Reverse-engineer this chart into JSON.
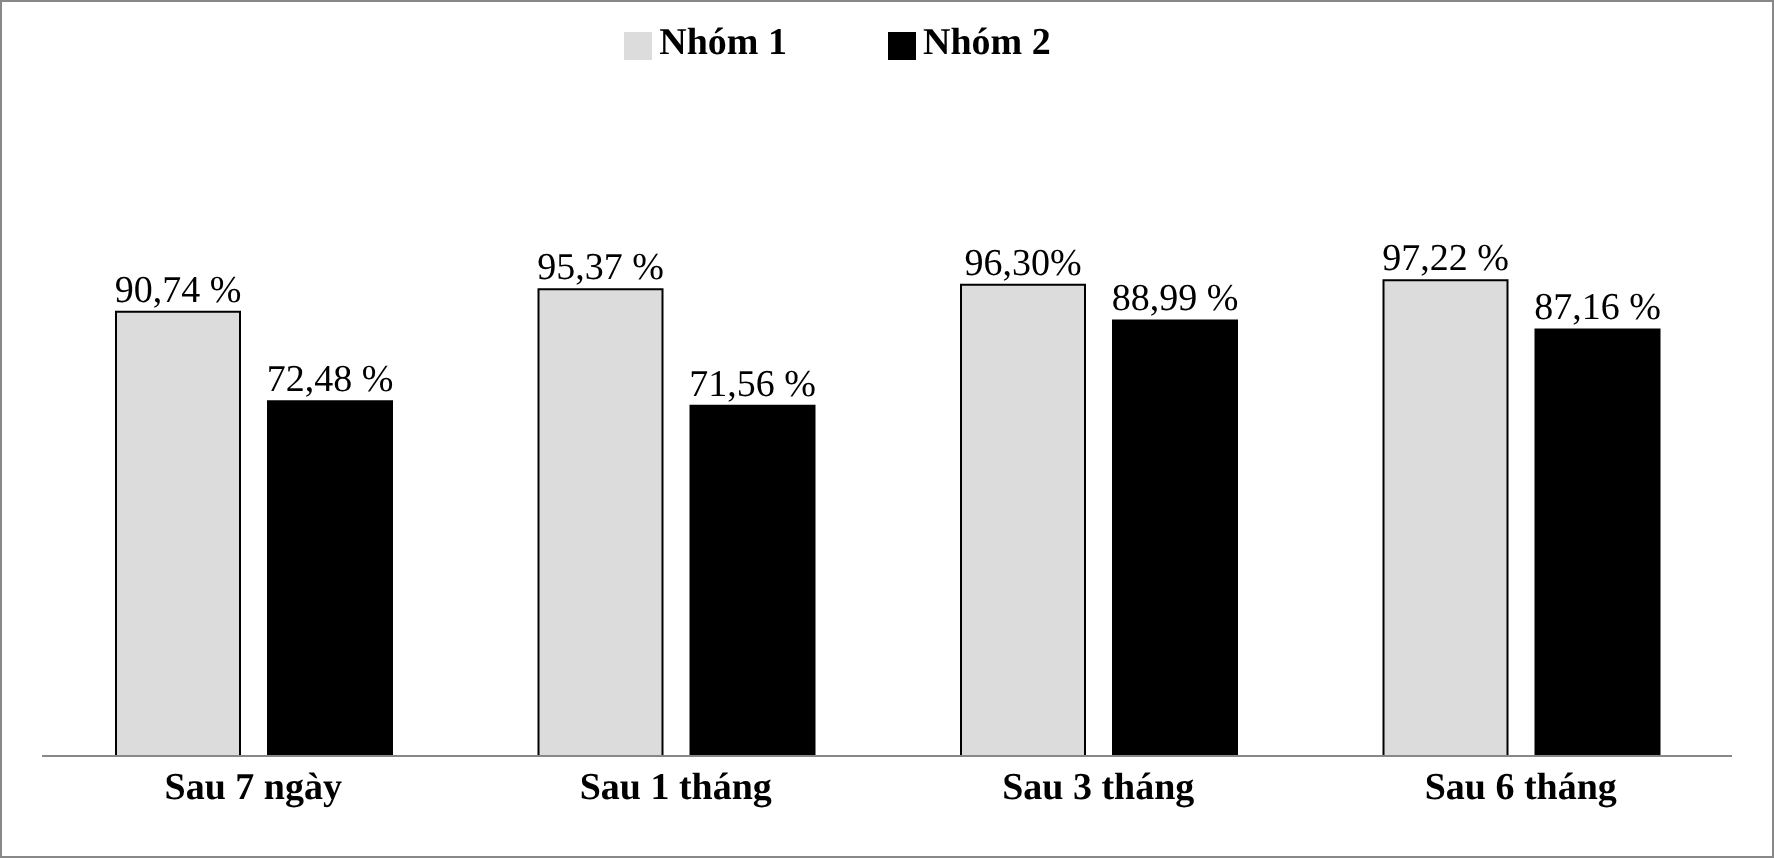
{
  "chart_data": {
    "type": "bar",
    "categories": [
      "Sau 7 ngày",
      "Sau 1 tháng",
      "Sau 3 tháng",
      "Sau 6 tháng"
    ],
    "series": [
      {
        "name": "Nhóm 1",
        "color": "#dcdcdc",
        "values": [
          90.74,
          95.37,
          96.3,
          97.22
        ],
        "value_labels": [
          "90,74 %",
          "95,37 %",
          "96,30%",
          "97,22 %"
        ]
      },
      {
        "name": "Nhóm 2",
        "color": "#000000",
        "values": [
          72.48,
          71.56,
          88.99,
          87.16
        ],
        "value_labels": [
          "72,48 %",
          "71,56 %",
          "88,99 %",
          "87,16 %"
        ]
      }
    ],
    "grid": false,
    "legend": "top",
    "data_labels": false
  }
}
